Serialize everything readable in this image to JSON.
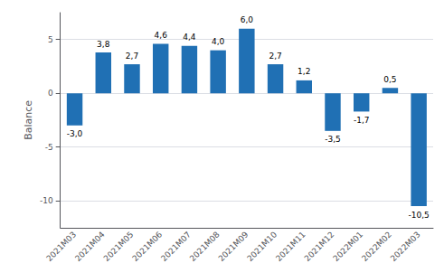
{
  "chart_data": {
    "type": "bar",
    "ylabel": "Balance",
    "categories": [
      "2021M03",
      "2021M04",
      "2021M05",
      "2021M06",
      "2021M07",
      "2021M08",
      "2021M09",
      "2021M10",
      "2021M11",
      "2021M12",
      "2022M01",
      "2022M02",
      "2022M03"
    ],
    "values": [
      -3.0,
      3.8,
      2.7,
      4.6,
      4.4,
      4.0,
      6.0,
      2.7,
      1.2,
      -3.5,
      -1.7,
      0.5,
      -10.5
    ],
    "value_labels": [
      "-3,0",
      "3,8",
      "2,7",
      "4,6",
      "4,4",
      "4,0",
      "6,0",
      "2,7",
      "1,2",
      "-3,5",
      "-1,7",
      "0,5",
      "-10,5"
    ],
    "data_labels": true,
    "color": "#2070b4",
    "ylim": [
      -12.5,
      7.5
    ],
    "yticks": [
      -10,
      -5,
      0,
      5
    ],
    "grid": true
  }
}
